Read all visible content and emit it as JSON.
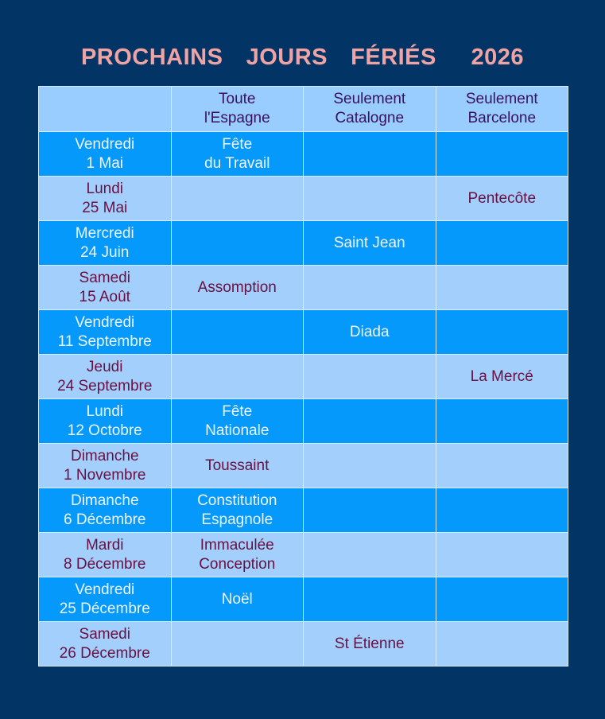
{
  "title": "PROCHAINS  JOURS  FÉRIÉS   2026",
  "colors": {
    "background": "#023466",
    "title": "#f0a3a3",
    "dark_row": "#0599fb",
    "light_row": "#a3cffc",
    "light_text": "#6a1040",
    "header_text": "#3a1060"
  },
  "table": {
    "headers": [
      "",
      "Toute\nl'Espagne",
      "Seulement\nCatalogne",
      "Seulement\nBarcelone"
    ],
    "rows": [
      [
        "Vendredi\n1 Mai",
        "Fête\ndu Travail",
        "",
        ""
      ],
      [
        "Lundi\n25 Mai",
        "",
        "",
        "Pentecôte"
      ],
      [
        "Mercredi\n24 Juin",
        "",
        "Saint Jean",
        ""
      ],
      [
        "Samedi\n15 Août",
        "Assomption",
        "",
        ""
      ],
      [
        "Vendredi\n11 Septembre",
        "",
        "Diada",
        ""
      ],
      [
        "Jeudi\n24 Septembre",
        "",
        "",
        "La Mercé"
      ],
      [
        "Lundi\n12 Octobre",
        "Fête\nNationale",
        "",
        ""
      ],
      [
        "Dimanche\n1 Novembre",
        "Toussaint",
        "",
        ""
      ],
      [
        "Dimanche\n6 Décembre",
        "Constitution\nEspagnole",
        "",
        ""
      ],
      [
        "Mardi\n8 Décembre",
        "Immaculée\nConception",
        "",
        ""
      ],
      [
        "Vendredi\n25 Décembre",
        "Noël",
        "",
        ""
      ],
      [
        "Samedi\n26 Décembre",
        "",
        "St Étienne",
        ""
      ]
    ]
  }
}
